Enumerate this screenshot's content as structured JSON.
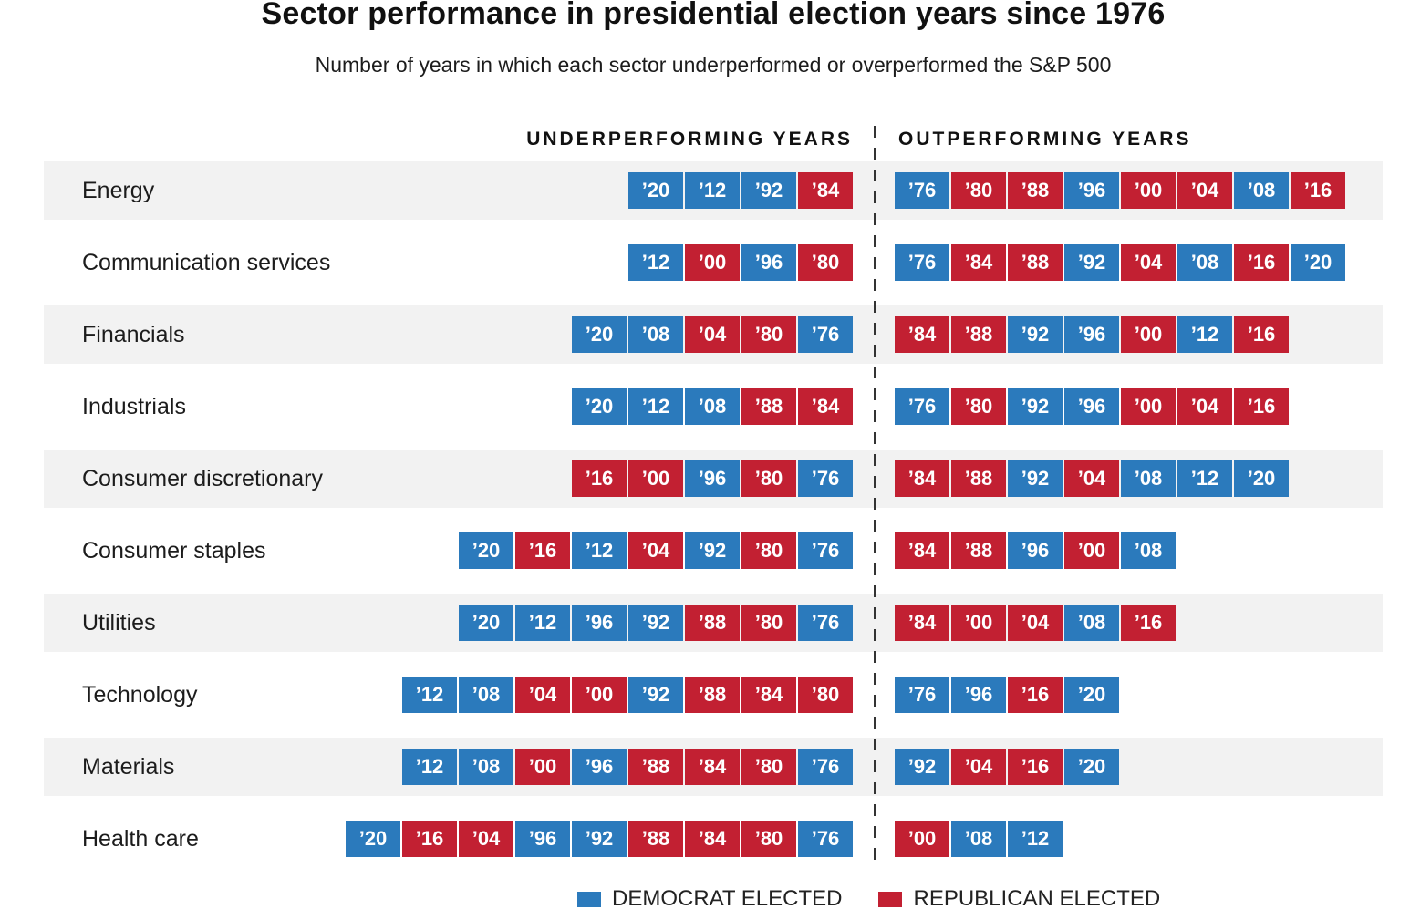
{
  "title": "Sector performance in presidential election years since 1976",
  "subtitle": "Number of years in which each sector underperformed or overperformed the S&P 500",
  "columns": {
    "under": "UNDERPERFORMING YEARS",
    "out": "OUTPERFORMING YEARS"
  },
  "legend": {
    "democrat": "DEMOCRAT ELECTED",
    "republican": "REPUBLICAN ELECTED"
  },
  "colors": {
    "democrat_blue": "#2b7abc",
    "republican_red": "#c22032",
    "row_alt_gray": "#f2f2f2"
  },
  "party_by_year": {
    "76": "D",
    "80": "R",
    "84": "R",
    "88": "R",
    "92": "D",
    "96": "D",
    "00": "R",
    "04": "R",
    "08": "D",
    "12": "D",
    "16": "R",
    "20": "D"
  },
  "chart_data": {
    "type": "table",
    "title": "Sector performance in presidential election years since 1976",
    "subtitle": "Number of years in which each sector underperformed or overperformed the S&P 500",
    "column_headers": [
      "UNDERPERFORMING YEARS",
      "OUTPERFORMING YEARS"
    ],
    "legend_entries": [
      {
        "label": "DEMOCRAT ELECTED",
        "color": "#2b7abc"
      },
      {
        "label": "REPUBLICAN ELECTED",
        "color": "#c22032"
      }
    ],
    "rows": [
      {
        "sector": "Energy",
        "under": [
          "20",
          "12",
          "92",
          "84"
        ],
        "out": [
          "76",
          "80",
          "88",
          "96",
          "00",
          "04",
          "08",
          "16"
        ]
      },
      {
        "sector": "Communication services",
        "under": [
          "12",
          "00",
          "96",
          "80"
        ],
        "out": [
          "76",
          "84",
          "88",
          "92",
          "04",
          "08",
          "16",
          "20"
        ]
      },
      {
        "sector": "Financials",
        "under": [
          "20",
          "08",
          "04",
          "80",
          "76"
        ],
        "out": [
          "84",
          "88",
          "92",
          "96",
          "00",
          "12",
          "16"
        ]
      },
      {
        "sector": "Industrials",
        "under": [
          "20",
          "12",
          "08",
          "88",
          "84"
        ],
        "out": [
          "76",
          "80",
          "92",
          "96",
          "00",
          "04",
          "16"
        ]
      },
      {
        "sector": "Consumer discretionary",
        "under": [
          "16",
          "00",
          "96",
          "80",
          "76"
        ],
        "out": [
          "84",
          "88",
          "92",
          "04",
          "08",
          "12",
          "20"
        ]
      },
      {
        "sector": "Consumer staples",
        "under": [
          "20",
          "16",
          "12",
          "04",
          "92",
          "80",
          "76"
        ],
        "out": [
          "84",
          "88",
          "96",
          "00",
          "08"
        ]
      },
      {
        "sector": "Utilities",
        "under": [
          "20",
          "12",
          "96",
          "92",
          "88",
          "80",
          "76"
        ],
        "out": [
          "84",
          "00",
          "04",
          "08",
          "16"
        ]
      },
      {
        "sector": "Technology",
        "under": [
          "12",
          "08",
          "04",
          "00",
          "92",
          "88",
          "84",
          "80"
        ],
        "out": [
          "76",
          "96",
          "16",
          "20"
        ]
      },
      {
        "sector": "Materials",
        "under": [
          "12",
          "08",
          "00",
          "96",
          "88",
          "84",
          "80",
          "76"
        ],
        "out": [
          "92",
          "04",
          "16",
          "20"
        ]
      },
      {
        "sector": "Health care",
        "under": [
          "20",
          "16",
          "04",
          "96",
          "92",
          "88",
          "84",
          "80",
          "76"
        ],
        "out": [
          "00",
          "08",
          "12"
        ]
      }
    ]
  }
}
